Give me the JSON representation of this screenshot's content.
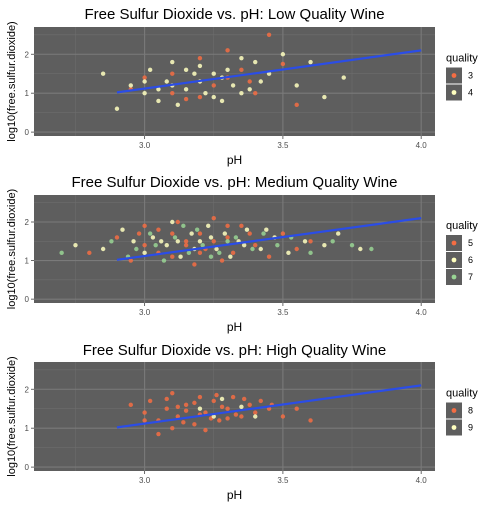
{
  "chart_data": [
    {
      "type": "scatter",
      "title": "Free Sulfur Dioxide vs. pH: Low Quality Wine",
      "xlabel": "pH",
      "ylabel": "log10(free.sulfur.dioxide)",
      "xlim": [
        2.6,
        4.05
      ],
      "ylim": [
        -0.1,
        2.7
      ],
      "x_ticks": [
        "3.0",
        "3.5",
        "4.0"
      ],
      "y_ticks": [
        "0",
        "1",
        "2"
      ],
      "legend": {
        "title": "quality",
        "position": "right"
      },
      "trend_line": {
        "x": [
          2.9,
          4.0
        ],
        "y": [
          1.02,
          2.1
        ],
        "color": "#2b4de6"
      },
      "series": [
        {
          "name": "3",
          "color": "#f46d43",
          "points": [
            [
              2.95,
              1.1
            ],
            [
              3.1,
              1.5
            ],
            [
              3.15,
              0.85
            ],
            [
              3.2,
              1.9
            ],
            [
              3.25,
              1.2
            ],
            [
              3.3,
              1.4
            ],
            [
              3.35,
              1.6
            ],
            [
              3.4,
              1.0
            ],
            [
              3.45,
              2.5
            ],
            [
              3.55,
              0.7
            ],
            [
              3.0,
              1.4
            ],
            [
              3.3,
              2.1
            ],
            [
              3.2,
              0.9
            ],
            [
              3.1,
              1.0
            ],
            [
              3.38,
              1.3
            ],
            [
              3.5,
              1.75
            ]
          ]
        },
        {
          "name": "4",
          "color": "#ffffbf",
          "points": [
            [
              2.85,
              1.5
            ],
            [
              2.9,
              0.6
            ],
            [
              2.95,
              1.2
            ],
            [
              3.0,
              1.0
            ],
            [
              3.02,
              1.6
            ],
            [
              3.05,
              0.8
            ],
            [
              3.08,
              1.3
            ],
            [
              3.1,
              1.8
            ],
            [
              3.12,
              0.7
            ],
            [
              3.15,
              1.1
            ],
            [
              3.18,
              1.5
            ],
            [
              3.2,
              1.7
            ],
            [
              3.22,
              1.0
            ],
            [
              3.25,
              0.9
            ],
            [
              3.28,
              1.4
            ],
            [
              3.3,
              1.6
            ],
            [
              3.32,
              1.2
            ],
            [
              3.35,
              1.9
            ],
            [
              3.38,
              1.1
            ],
            [
              3.4,
              1.8
            ],
            [
              3.42,
              1.3
            ],
            [
              3.45,
              1.5
            ],
            [
              3.5,
              2.0
            ],
            [
              3.55,
              1.2
            ],
            [
              3.6,
              1.8
            ],
            [
              3.65,
              0.9
            ],
            [
              3.72,
              1.4
            ],
            [
              3.0,
              1.3
            ],
            [
              3.1,
              1.2
            ],
            [
              3.2,
              1.3
            ],
            [
              3.15,
              1.6
            ],
            [
              3.25,
              1.5
            ],
            [
              3.05,
              1.1
            ],
            [
              3.35,
              1.0
            ],
            [
              3.28,
              0.8
            ]
          ]
        }
      ]
    },
    {
      "type": "scatter",
      "title": "Free Sulfur Dioxide vs. pH: Medium Quality Wine",
      "xlabel": "pH",
      "ylabel": "log10(free.sulfur.dioxide)",
      "xlim": [
        2.6,
        4.05
      ],
      "ylim": [
        -0.1,
        2.7
      ],
      "x_ticks": [
        "3.0",
        "3.5",
        "4.0"
      ],
      "y_ticks": [
        "0",
        "1",
        "2"
      ],
      "legend": {
        "title": "quality",
        "position": "right"
      },
      "trend_line": {
        "x": [
          2.9,
          4.0
        ],
        "y": [
          1.02,
          2.1
        ],
        "color": "#2b4de6"
      },
      "series": [
        {
          "name": "5",
          "color": "#f46d43",
          "points": [
            [
              2.8,
              1.2
            ],
            [
              2.9,
              1.6
            ],
            [
              2.95,
              1.0
            ],
            [
              3.0,
              1.4
            ],
            [
              3.05,
              1.8
            ],
            [
              3.1,
              1.1
            ],
            [
              3.12,
              2.0
            ],
            [
              3.15,
              1.5
            ],
            [
              3.18,
              0.9
            ],
            [
              3.2,
              1.7
            ],
            [
              3.22,
              1.3
            ],
            [
              3.25,
              2.1
            ],
            [
              3.28,
              1.0
            ],
            [
              3.3,
              1.6
            ],
            [
              3.32,
              1.2
            ],
            [
              3.35,
              1.9
            ],
            [
              3.4,
              1.4
            ],
            [
              3.45,
              1.1
            ],
            [
              3.5,
              1.7
            ],
            [
              3.55,
              1.3
            ],
            [
              3.6,
              1.5
            ],
            [
              3.0,
              1.9
            ],
            [
              3.1,
              1.7
            ],
            [
              3.2,
              1.2
            ],
            [
              3.3,
              1.9
            ],
            [
              3.15,
              1.4
            ],
            [
              3.25,
              1.5
            ],
            [
              3.05,
              1.2
            ],
            [
              2.98,
              1.7
            ],
            [
              3.38,
              1.7
            ]
          ]
        },
        {
          "name": "6",
          "color": "#ffffbf",
          "points": [
            [
              2.75,
              1.4
            ],
            [
              2.85,
              1.3
            ],
            [
              2.92,
              1.8
            ],
            [
              3.0,
              1.2
            ],
            [
              3.03,
              1.6
            ],
            [
              3.08,
              1.4
            ],
            [
              3.1,
              2.0
            ],
            [
              3.13,
              1.1
            ],
            [
              3.17,
              1.7
            ],
            [
              3.2,
              1.5
            ],
            [
              3.23,
              1.9
            ],
            [
              3.26,
              1.3
            ],
            [
              3.29,
              1.7
            ],
            [
              3.31,
              1.1
            ],
            [
              3.34,
              1.5
            ],
            [
              3.37,
              1.8
            ],
            [
              3.42,
              1.3
            ],
            [
              3.47,
              1.6
            ],
            [
              3.52,
              1.2
            ],
            [
              3.58,
              1.5
            ],
            [
              3.65,
              1.4
            ],
            [
              3.7,
              1.7
            ],
            [
              3.78,
              1.3
            ],
            [
              3.12,
              1.5
            ],
            [
              3.18,
              1.3
            ],
            [
              3.24,
              1.6
            ],
            [
              3.06,
              1.5
            ],
            [
              3.36,
              1.4
            ],
            [
              3.44,
              1.8
            ],
            [
              2.96,
              1.5
            ]
          ]
        },
        {
          "name": "7",
          "color": "#99d594",
          "points": [
            [
              2.7,
              1.2
            ],
            [
              2.88,
              1.5
            ],
            [
              2.97,
              1.3
            ],
            [
              3.02,
              1.7
            ],
            [
              3.07,
              1.0
            ],
            [
              3.11,
              1.6
            ],
            [
              3.16,
              1.2
            ],
            [
              3.19,
              1.8
            ],
            [
              3.21,
              1.4
            ],
            [
              3.27,
              1.2
            ],
            [
              3.33,
              1.6
            ],
            [
              3.39,
              1.3
            ],
            [
              3.43,
              1.7
            ],
            [
              3.48,
              1.4
            ],
            [
              3.53,
              1.6
            ],
            [
              3.6,
              1.2
            ],
            [
              3.68,
              1.5
            ],
            [
              3.75,
              1.4
            ],
            [
              3.82,
              1.3
            ],
            [
              3.14,
              1.9
            ],
            [
              3.24,
              1.1
            ],
            [
              3.3,
              1.5
            ],
            [
              3.04,
              1.4
            ],
            [
              2.94,
              1.1
            ]
          ]
        }
      ]
    },
    {
      "type": "scatter",
      "title": "Free Sulfur Dioxide vs. pH: High Quality Wine",
      "xlabel": "pH",
      "ylabel": "log10(free.sulfur.dioxide)",
      "xlim": [
        2.6,
        4.05
      ],
      "ylim": [
        -0.1,
        2.7
      ],
      "x_ticks": [
        "3.0",
        "3.5",
        "4.0"
      ],
      "y_ticks": [
        "0",
        "1",
        "2"
      ],
      "legend": {
        "title": "quality",
        "position": "right"
      },
      "trend_line": {
        "x": [
          2.9,
          4.0
        ],
        "y": [
          1.02,
          2.1
        ],
        "color": "#2b4de6"
      },
      "series": [
        {
          "name": "8",
          "color": "#f46d43",
          "points": [
            [
              2.95,
              1.6
            ],
            [
              3.0,
              1.4
            ],
            [
              3.02,
              1.7
            ],
            [
              3.05,
              1.2
            ],
            [
              3.08,
              1.5
            ],
            [
              3.1,
              1.9
            ],
            [
              3.12,
              1.3
            ],
            [
              3.15,
              1.6
            ],
            [
              3.18,
              1.1
            ],
            [
              3.2,
              1.8
            ],
            [
              3.22,
              1.4
            ],
            [
              3.25,
              1.7
            ],
            [
              3.27,
              1.2
            ],
            [
              3.3,
              1.5
            ],
            [
              3.32,
              1.8
            ],
            [
              3.35,
              1.3
            ],
            [
              3.38,
              1.6
            ],
            [
              3.4,
              1.4
            ],
            [
              3.42,
              1.7
            ],
            [
              3.45,
              1.5
            ],
            [
              3.5,
              1.3
            ],
            [
              3.55,
              1.5
            ],
            [
              3.6,
              1.2
            ],
            [
              3.1,
              1.0
            ],
            [
              3.05,
              0.85
            ],
            [
              3.15,
              1.45
            ],
            [
              3.28,
              1.55
            ],
            [
              3.33,
              1.35
            ],
            [
              3.18,
              1.65
            ],
            [
              3.24,
              1.25
            ],
            [
              3.0,
              1.2
            ],
            [
              3.36,
              1.75
            ],
            [
              3.12,
              1.55
            ],
            [
              3.2,
              1.35
            ],
            [
              3.08,
              1.75
            ],
            [
              3.46,
              1.6
            ],
            [
              3.26,
              1.85
            ],
            [
              3.14,
              1.15
            ],
            [
              3.3,
              1.25
            ],
            [
              3.22,
              0.95
            ]
          ]
        },
        {
          "name": "9",
          "color": "#ffffbf",
          "points": [
            [
              3.2,
              1.5
            ],
            [
              3.28,
              1.75
            ],
            [
              3.4,
              1.3
            ],
            [
              3.35,
              1.55
            ],
            [
              3.25,
              1.3
            ]
          ]
        }
      ]
    }
  ]
}
